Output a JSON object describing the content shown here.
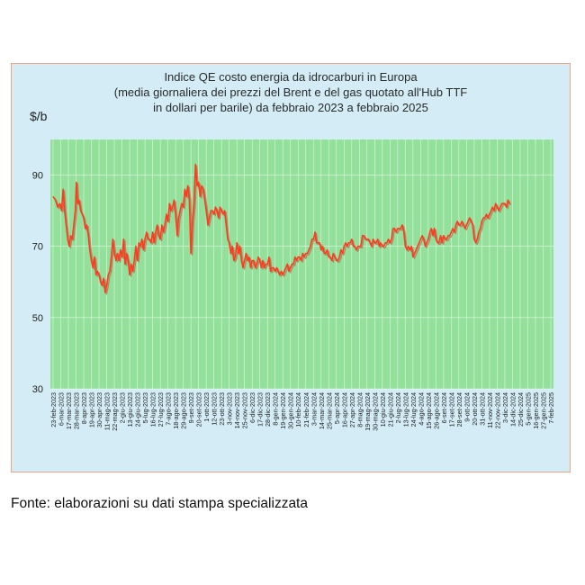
{
  "chart_data": {
    "type": "line",
    "title_lines": [
      "Indice QE costo energia da idrocarburi in Europa",
      "(media giornaliera dei prezzi del Brent e del gas quotato all'Hub TTF",
      "in dollari per barile) da febbraio 2023 a febbraio 2025"
    ],
    "ylabel": "$/b",
    "xlabel": "",
    "ylim": [
      30,
      100
    ],
    "yticks": [
      30,
      50,
      70,
      90
    ],
    "grid": true,
    "series_color": "#ff3b1f",
    "shadow_color": "#b06a4a",
    "plot_bg": "#92e09a",
    "x_tick_labels": [
      "23-feb-2023",
      "6-mar-2023",
      "17-mar-2023",
      "28-mar-2023",
      "8-apr-2023",
      "19-apr-2023",
      "30-apr-2023",
      "11-mag-2023",
      "22-mag-2023",
      "2-giu-2023",
      "13-giu-2023",
      "24-giu-2023",
      "5-lug-2023",
      "16-lug-2023",
      "27-lug-2023",
      "7-ago-2023",
      "18-ago-2023",
      "29-ago-2023",
      "9-set-2023",
      "20-set-2023",
      "1-ott-2023",
      "12-ott-2023",
      "23-ott-2023",
      "3-nov-2023",
      "14-nov-2023",
      "25-nov-2023",
      "6-dic-2023",
      "17-dic-2023",
      "28-dic-2023",
      "8-gen-2024",
      "19-gen-2024",
      "30-gen-2024",
      "10-feb-2024",
      "21-feb-2024",
      "3-mar-2024",
      "14-mar-2024",
      "25-mar-2024",
      "5-apr-2024",
      "16-apr-2024",
      "27-apr-2024",
      "8-mag-2024",
      "19-mag-2024",
      "30-mag-2024",
      "10-giu-2024",
      "21-giu-2024",
      "2-lug-2024",
      "13-lug-2024",
      "24-lug-2024",
      "4-ago-2024",
      "15-ago-2024",
      "26-ago-2024",
      "6-set-2024",
      "17-set-2024",
      "28-set-2024",
      "9-ott-2024",
      "20-ott-2024",
      "31-ott-2024",
      "11-nov-2024",
      "22-nov-2024",
      "3-dic-2024",
      "14-dic-2024",
      "25-dic-2024",
      "5-gen-2025",
      "16-gen-2025",
      "27-gen-2025",
      "7-feb-2025"
    ],
    "series": [
      {
        "name": "Indice QE",
        "values": [
          [
            0,
            84
          ],
          [
            0.3,
            83
          ],
          [
            0.6,
            81
          ],
          [
            0.9,
            82
          ],
          [
            1.1,
            80
          ],
          [
            1.3,
            86
          ],
          [
            1.5,
            80
          ],
          [
            1.7,
            76
          ],
          [
            1.9,
            72
          ],
          [
            2.1,
            70
          ],
          [
            2.3,
            73
          ],
          [
            2.5,
            72
          ],
          [
            2.7,
            76
          ],
          [
            2.9,
            80
          ],
          [
            3.05,
            88
          ],
          [
            3.2,
            82
          ],
          [
            3.4,
            83
          ],
          [
            3.6,
            80
          ],
          [
            3.8,
            79
          ],
          [
            4.0,
            78
          ],
          [
            4.2,
            75
          ],
          [
            4.4,
            76
          ],
          [
            4.6,
            73
          ],
          [
            4.8,
            69
          ],
          [
            5.0,
            66
          ],
          [
            5.2,
            64
          ],
          [
            5.4,
            67
          ],
          [
            5.6,
            62
          ],
          [
            5.8,
            63
          ],
          [
            6.0,
            62
          ],
          [
            6.2,
            60
          ],
          [
            6.4,
            59
          ],
          [
            6.6,
            61
          ],
          [
            6.8,
            57
          ],
          [
            7.0,
            59
          ],
          [
            7.2,
            62
          ],
          [
            7.4,
            63
          ],
          [
            7.6,
            67
          ],
          [
            7.8,
            72
          ],
          [
            8.0,
            68
          ],
          [
            8.2,
            66
          ],
          [
            8.4,
            68
          ],
          [
            8.6,
            66
          ],
          [
            8.8,
            69
          ],
          [
            9.0,
            67
          ],
          [
            9.2,
            72
          ],
          [
            9.4,
            65
          ],
          [
            9.6,
            68
          ],
          [
            9.8,
            66
          ],
          [
            10.0,
            62
          ],
          [
            10.2,
            65
          ],
          [
            10.4,
            63
          ],
          [
            10.6,
            66
          ],
          [
            10.8,
            70
          ],
          [
            11.0,
            66
          ],
          [
            11.2,
            71
          ],
          [
            11.4,
            70
          ],
          [
            11.6,
            72
          ],
          [
            11.8,
            69
          ],
          [
            12.0,
            72
          ],
          [
            12.2,
            74
          ],
          [
            12.4,
            72
          ],
          [
            12.6,
            72
          ],
          [
            12.8,
            71
          ],
          [
            13.0,
            74
          ],
          [
            13.2,
            71
          ],
          [
            13.4,
            74
          ],
          [
            13.6,
            76
          ],
          [
            13.8,
            73
          ],
          [
            14.0,
            72
          ],
          [
            14.2,
            76
          ],
          [
            14.4,
            74
          ],
          [
            14.6,
            76
          ],
          [
            14.8,
            79
          ],
          [
            15.0,
            77
          ],
          [
            15.2,
            82
          ],
          [
            15.4,
            80
          ],
          [
            15.6,
            81
          ],
          [
            15.8,
            83
          ],
          [
            16.0,
            79
          ],
          [
            16.2,
            73
          ],
          [
            16.4,
            78
          ],
          [
            16.6,
            80
          ],
          [
            16.8,
            82
          ],
          [
            17.0,
            81
          ],
          [
            17.2,
            86
          ],
          [
            17.4,
            84
          ],
          [
            17.6,
            87
          ],
          [
            17.8,
            83
          ],
          [
            18.0,
            68
          ],
          [
            18.2,
            77
          ],
          [
            18.4,
            82
          ],
          [
            18.6,
            93
          ],
          [
            18.8,
            87
          ],
          [
            19.0,
            88
          ],
          [
            19.2,
            84
          ],
          [
            19.4,
            87
          ],
          [
            19.6,
            86
          ],
          [
            19.8,
            83
          ],
          [
            20.0,
            80
          ],
          [
            20.2,
            76
          ],
          [
            20.4,
            78
          ],
          [
            20.6,
            80
          ],
          [
            20.8,
            80
          ],
          [
            21.0,
            79
          ],
          [
            21.2,
            81
          ],
          [
            21.4,
            80
          ],
          [
            21.6,
            78
          ],
          [
            21.8,
            81
          ],
          [
            22.0,
            80
          ],
          [
            22.2,
            79
          ],
          [
            22.4,
            80
          ],
          [
            22.6,
            76
          ],
          [
            22.8,
            72
          ],
          [
            23.0,
            71
          ],
          [
            23.2,
            68
          ],
          [
            23.4,
            70
          ],
          [
            23.6,
            66
          ],
          [
            23.8,
            67
          ],
          [
            24.0,
            71
          ],
          [
            24.2,
            68
          ],
          [
            24.4,
            70
          ],
          [
            24.6,
            66
          ],
          [
            24.8,
            64
          ],
          [
            25.0,
            66
          ],
          [
            25.2,
            68
          ],
          [
            25.4,
            66
          ],
          [
            25.6,
            67
          ],
          [
            25.8,
            64
          ],
          [
            26.0,
            66
          ],
          [
            26.2,
            66
          ],
          [
            26.4,
            64
          ],
          [
            26.6,
            65
          ],
          [
            26.8,
            67
          ],
          [
            27.0,
            66
          ],
          [
            27.2,
            64
          ],
          [
            27.4,
            66
          ],
          [
            27.6,
            64
          ],
          [
            27.8,
            65
          ],
          [
            28.0,
            65
          ],
          [
            28.2,
            67
          ],
          [
            28.4,
            63
          ],
          [
            28.6,
            64
          ],
          [
            28.8,
            64
          ],
          [
            29.0,
            63
          ],
          [
            29.2,
            64
          ],
          [
            29.4,
            63
          ],
          [
            29.6,
            62
          ],
          [
            29.8,
            63
          ],
          [
            30.0,
            62
          ],
          [
            30.2,
            63
          ],
          [
            30.4,
            64
          ],
          [
            30.6,
            65
          ],
          [
            30.8,
            63
          ],
          [
            31.0,
            64
          ],
          [
            31.2,
            65
          ],
          [
            31.4,
            65
          ],
          [
            31.6,
            67
          ],
          [
            31.8,
            66
          ],
          [
            32.0,
            67
          ],
          [
            32.2,
            67
          ],
          [
            32.4,
            66
          ],
          [
            32.6,
            68
          ],
          [
            32.8,
            67
          ],
          [
            33.0,
            68
          ],
          [
            33.2,
            68
          ],
          [
            33.4,
            69
          ],
          [
            33.6,
            70
          ],
          [
            33.8,
            72
          ],
          [
            34.0,
            72
          ],
          [
            34.2,
            74
          ],
          [
            34.4,
            71
          ],
          [
            34.6,
            71
          ],
          [
            34.8,
            71
          ],
          [
            35.0,
            69
          ],
          [
            35.2,
            70
          ],
          [
            35.4,
            68
          ],
          [
            35.6,
            68
          ],
          [
            35.8,
            69
          ],
          [
            36.0,
            67
          ],
          [
            36.2,
            67
          ],
          [
            36.4,
            66
          ],
          [
            36.6,
            68
          ],
          [
            36.8,
            67
          ],
          [
            37.0,
            66
          ],
          [
            37.2,
            66
          ],
          [
            37.4,
            67
          ],
          [
            37.6,
            69
          ],
          [
            37.8,
            68
          ],
          [
            38.0,
            70
          ],
          [
            38.2,
            71
          ],
          [
            38.4,
            70
          ],
          [
            38.6,
            71
          ],
          [
            38.8,
            71
          ],
          [
            39.0,
            72
          ],
          [
            39.2,
            70
          ],
          [
            39.4,
            70
          ],
          [
            39.6,
            69
          ],
          [
            39.8,
            70
          ],
          [
            40.0,
            70
          ],
          [
            40.2,
            70
          ],
          [
            40.4,
            73
          ],
          [
            40.6,
            73
          ],
          [
            40.8,
            72
          ],
          [
            41.0,
            72
          ],
          [
            41.2,
            72
          ],
          [
            41.4,
            71
          ],
          [
            41.6,
            70
          ],
          [
            41.8,
            72
          ],
          [
            42.0,
            71
          ],
          [
            42.2,
            71
          ],
          [
            42.4,
            72
          ],
          [
            42.6,
            70
          ],
          [
            42.8,
            71
          ],
          [
            43.0,
            70
          ],
          [
            43.2,
            70
          ],
          [
            43.4,
            71
          ],
          [
            43.6,
            71
          ],
          [
            43.8,
            72
          ],
          [
            44.0,
            71
          ],
          [
            44.2,
            72
          ],
          [
            44.4,
            75
          ],
          [
            44.6,
            75
          ],
          [
            44.8,
            74
          ],
          [
            45.0,
            75
          ],
          [
            45.2,
            75
          ],
          [
            45.4,
            75
          ],
          [
            45.6,
            76
          ],
          [
            45.8,
            74
          ],
          [
            46.0,
            70
          ],
          [
            46.2,
            69
          ],
          [
            46.4,
            70
          ],
          [
            46.6,
            69
          ],
          [
            46.8,
            70
          ],
          [
            47.0,
            67
          ],
          [
            47.2,
            68
          ],
          [
            47.4,
            69
          ],
          [
            47.6,
            70
          ],
          [
            47.8,
            71
          ],
          [
            48.0,
            72
          ],
          [
            48.2,
            73
          ],
          [
            48.4,
            72
          ],
          [
            48.6,
            70
          ],
          [
            48.8,
            71
          ],
          [
            49.0,
            72
          ],
          [
            49.2,
            74
          ],
          [
            49.4,
            75
          ],
          [
            49.6,
            73
          ],
          [
            49.8,
            75
          ],
          [
            50.0,
            72
          ],
          [
            50.2,
            71
          ],
          [
            50.4,
            71
          ],
          [
            50.6,
            73
          ],
          [
            50.8,
            71
          ],
          [
            51.0,
            73
          ],
          [
            51.2,
            72
          ],
          [
            51.4,
            72
          ],
          [
            51.6,
            73
          ],
          [
            51.8,
            73
          ],
          [
            52.0,
            74
          ],
          [
            52.2,
            75
          ],
          [
            52.4,
            74
          ],
          [
            52.6,
            76
          ],
          [
            52.8,
            77
          ],
          [
            53.0,
            76
          ],
          [
            53.2,
            76
          ],
          [
            53.4,
            77
          ],
          [
            53.6,
            76
          ],
          [
            53.8,
            75
          ],
          [
            54.0,
            76
          ],
          [
            54.2,
            77
          ],
          [
            54.4,
            78
          ],
          [
            54.6,
            77
          ],
          [
            54.8,
            76
          ],
          [
            55.0,
            72
          ],
          [
            55.2,
            71
          ],
          [
            55.4,
            72
          ],
          [
            55.6,
            74
          ],
          [
            55.8,
            75
          ],
          [
            56.0,
            77
          ],
          [
            56.2,
            78
          ],
          [
            56.4,
            78
          ],
          [
            56.6,
            79
          ],
          [
            56.8,
            78
          ],
          [
            57.0,
            79
          ],
          [
            57.2,
            80
          ],
          [
            57.4,
            81
          ],
          [
            57.6,
            80
          ],
          [
            57.8,
            82
          ],
          [
            58.0,
            81
          ],
          [
            58.2,
            80
          ],
          [
            58.4,
            81
          ],
          [
            58.6,
            82
          ],
          [
            58.8,
            82
          ],
          [
            59.0,
            82
          ],
          [
            59.2,
            81
          ],
          [
            59.4,
            83
          ],
          [
            59.6,
            82
          ]
        ]
      }
    ]
  },
  "source_note": "Fonte: elaborazioni su dati stampa specializzata"
}
